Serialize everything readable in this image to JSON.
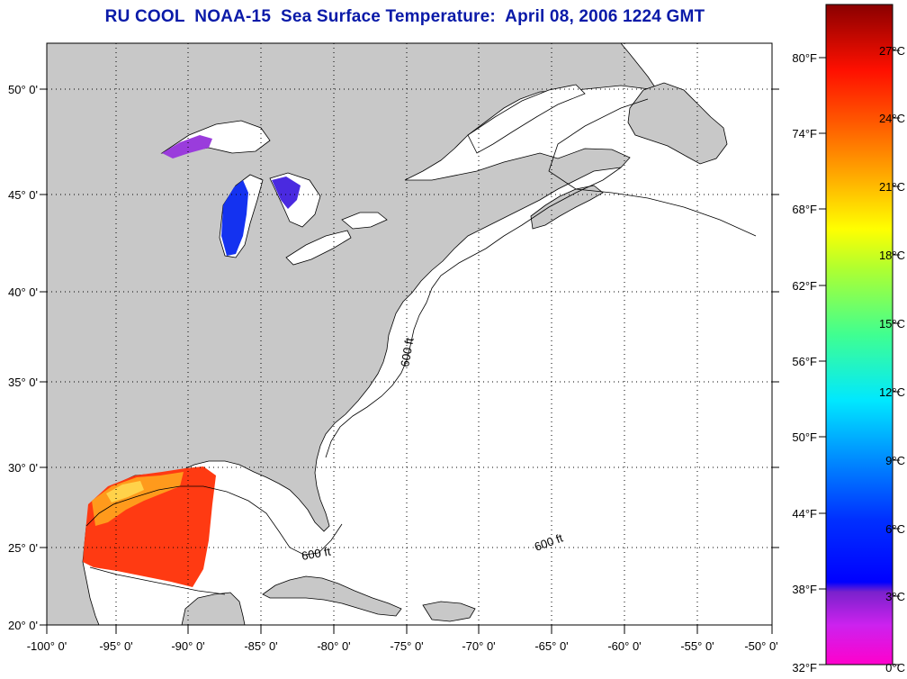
{
  "title": "RU COOL  NOAA-15  Sea Surface Temperature:  April 08, 2006 1224 GMT",
  "map": {
    "lon_labels": [
      "-100° 0'",
      "-95° 0'",
      "-90° 0'",
      "-85° 0'",
      "-80° 0'",
      "-75° 0'",
      "-70° 0'",
      "-65° 0'",
      "-60° 0'",
      "-55° 0'",
      "-50° 0'"
    ],
    "lat_labels": [
      "50° 0'",
      "45° 0'",
      "40° 0'",
      "35° 0'",
      "30° 0'",
      "25° 0'",
      "20° 0'"
    ],
    "contour_label": "600 ft",
    "land_color": "#c8c8c8",
    "water_color": "#ffffff"
  },
  "colorbar": {
    "fahrenheit_labels": [
      "80°F",
      "74°F",
      "68°F",
      "62°F",
      "56°F",
      "50°F",
      "44°F",
      "38°F",
      "32°F"
    ],
    "celsius_labels": [
      "27°C",
      "24°C",
      "21°C",
      "18°C",
      "15°C",
      "12°C",
      "9°C",
      "6°C",
      "3°C",
      "0°C"
    ]
  }
}
